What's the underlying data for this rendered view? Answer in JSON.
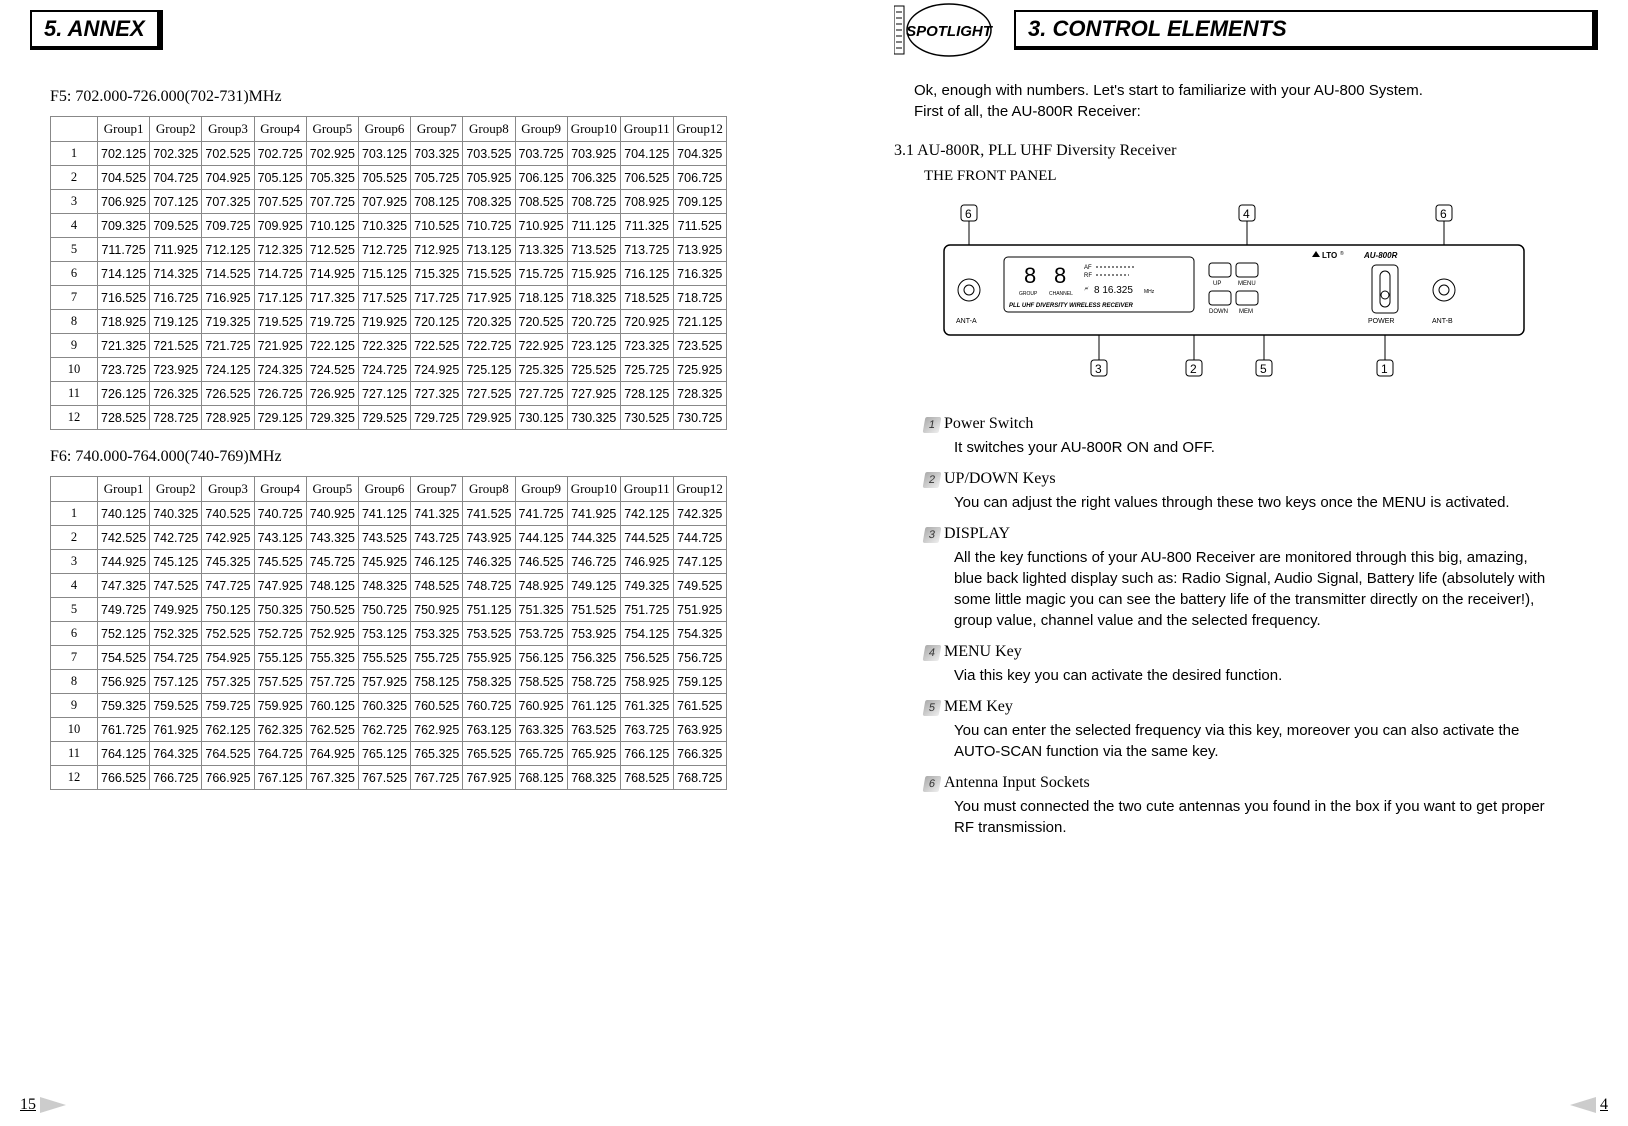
{
  "left": {
    "header": "5. ANNEX",
    "pageNum": "15",
    "table1": {
      "title": "F5: 702.000-726.000(702-731)MHz",
      "columns": [
        "Group1",
        "Group2",
        "Group3",
        "Group4",
        "Group5",
        "Group6",
        "Group7",
        "Group8",
        "Group9",
        "Group10",
        "Group11",
        "Group12"
      ],
      "rows": [
        [
          "702.125",
          "702.325",
          "702.525",
          "702.725",
          "702.925",
          "703.125",
          "703.325",
          "703.525",
          "703.725",
          "703.925",
          "704.125",
          "704.325"
        ],
        [
          "704.525",
          "704.725",
          "704.925",
          "705.125",
          "705.325",
          "705.525",
          "705.725",
          "705.925",
          "706.125",
          "706.325",
          "706.525",
          "706.725"
        ],
        [
          "706.925",
          "707.125",
          "707.325",
          "707.525",
          "707.725",
          "707.925",
          "708.125",
          "708.325",
          "708.525",
          "708.725",
          "708.925",
          "709.125"
        ],
        [
          "709.325",
          "709.525",
          "709.725",
          "709.925",
          "710.125",
          "710.325",
          "710.525",
          "710.725",
          "710.925",
          "711.125",
          "711.325",
          "711.525"
        ],
        [
          "711.725",
          "711.925",
          "712.125",
          "712.325",
          "712.525",
          "712.725",
          "712.925",
          "713.125",
          "713.325",
          "713.525",
          "713.725",
          "713.925"
        ],
        [
          "714.125",
          "714.325",
          "714.525",
          "714.725",
          "714.925",
          "715.125",
          "715.325",
          "715.525",
          "715.725",
          "715.925",
          "716.125",
          "716.325"
        ],
        [
          "716.525",
          "716.725",
          "716.925",
          "717.125",
          "717.325",
          "717.525",
          "717.725",
          "717.925",
          "718.125",
          "718.325",
          "718.525",
          "718.725"
        ],
        [
          "718.925",
          "719.125",
          "719.325",
          "719.525",
          "719.725",
          "719.925",
          "720.125",
          "720.325",
          "720.525",
          "720.725",
          "720.925",
          "721.125"
        ],
        [
          "721.325",
          "721.525",
          "721.725",
          "721.925",
          "722.125",
          "722.325",
          "722.525",
          "722.725",
          "722.925",
          "723.125",
          "723.325",
          "723.525"
        ],
        [
          "723.725",
          "723.925",
          "724.125",
          "724.325",
          "724.525",
          "724.725",
          "724.925",
          "725.125",
          "725.325",
          "725.525",
          "725.725",
          "725.925"
        ],
        [
          "726.125",
          "726.325",
          "726.525",
          "726.725",
          "726.925",
          "727.125",
          "727.325",
          "727.525",
          "727.725",
          "727.925",
          "728.125",
          "728.325"
        ],
        [
          "728.525",
          "728.725",
          "728.925",
          "729.125",
          "729.325",
          "729.525",
          "729.725",
          "729.925",
          "730.125",
          "730.325",
          "730.525",
          "730.725"
        ]
      ]
    },
    "table2": {
      "title": "F6: 740.000-764.000(740-769)MHz",
      "columns": [
        "Group1",
        "Group2",
        "Group3",
        "Group4",
        "Group5",
        "Group6",
        "Group7",
        "Group8",
        "Group9",
        "Group10",
        "Group11",
        "Group12"
      ],
      "rows": [
        [
          "740.125",
          "740.325",
          "740.525",
          "740.725",
          "740.925",
          "741.125",
          "741.325",
          "741.525",
          "741.725",
          "741.925",
          "742.125",
          "742.325"
        ],
        [
          "742.525",
          "742.725",
          "742.925",
          "743.125",
          "743.325",
          "743.525",
          "743.725",
          "743.925",
          "744.125",
          "744.325",
          "744.525",
          "744.725"
        ],
        [
          "744.925",
          "745.125",
          "745.325",
          "745.525",
          "745.725",
          "745.925",
          "746.125",
          "746.325",
          "746.525",
          "746.725",
          "746.925",
          "747.125"
        ],
        [
          "747.325",
          "747.525",
          "747.725",
          "747.925",
          "748.125",
          "748.325",
          "748.525",
          "748.725",
          "748.925",
          "749.125",
          "749.325",
          "749.525"
        ],
        [
          "749.725",
          "749.925",
          "750.125",
          "750.325",
          "750.525",
          "750.725",
          "750.925",
          "751.125",
          "751.325",
          "751.525",
          "751.725",
          "751.925"
        ],
        [
          "752.125",
          "752.325",
          "752.525",
          "752.725",
          "752.925",
          "753.125",
          "753.325",
          "753.525",
          "753.725",
          "753.925",
          "754.125",
          "754.325"
        ],
        [
          "754.525",
          "754.725",
          "754.925",
          "755.125",
          "755.325",
          "755.525",
          "755.725",
          "755.925",
          "756.125",
          "756.325",
          "756.525",
          "756.725"
        ],
        [
          "756.925",
          "757.125",
          "757.325",
          "757.525",
          "757.725",
          "757.925",
          "758.125",
          "758.325",
          "758.525",
          "758.725",
          "758.925",
          "759.125"
        ],
        [
          "759.325",
          "759.525",
          "759.725",
          "759.925",
          "760.125",
          "760.325",
          "760.525",
          "760.725",
          "760.925",
          "761.125",
          "761.325",
          "761.525"
        ],
        [
          "761.725",
          "761.925",
          "762.125",
          "762.325",
          "762.525",
          "762.725",
          "762.925",
          "763.125",
          "763.325",
          "763.525",
          "763.725",
          "763.925"
        ],
        [
          "764.125",
          "764.325",
          "764.525",
          "764.725",
          "764.925",
          "765.125",
          "765.325",
          "765.525",
          "765.725",
          "765.925",
          "766.125",
          "766.325"
        ],
        [
          "766.525",
          "766.725",
          "766.925",
          "767.125",
          "767.325",
          "767.525",
          "767.725",
          "767.925",
          "768.125",
          "768.325",
          "768.525",
          "768.725"
        ]
      ]
    }
  },
  "right": {
    "header": "3. CONTROL ELEMENTS",
    "pageNum": "4",
    "spotlight": "SPOTLIGHT",
    "intro1": "Ok, enough with numbers. Let's start to familiarize with your AU-800 System.",
    "intro2": "First of all, the AU-800R Receiver:",
    "sub31": "3.1 AU-800R, PLL UHF Diversity Receiver",
    "frontPanel": "THE FRONT PANEL",
    "diagram": {
      "callouts": [
        "1",
        "2",
        "3",
        "4",
        "5",
        "6",
        "6"
      ],
      "labels": {
        "antA": "ANT-A",
        "antB": "ANT-B",
        "power": "POWER",
        "up": "UP",
        "down": "DOWN",
        "menu": "MENU",
        "mem": "MEM",
        "pll": "PLL UHF DIVERSITY WIRELESS RECEIVER",
        "model": "AU-800R",
        "brand": "LTO",
        "group": "GROUP",
        "channel": "CHANNEL",
        "af": "AF",
        "rf": "RF",
        "freq": "8 16.325",
        "mhz": "MHz",
        "digit": "8",
        "ant": "🗲"
      }
    },
    "items": [
      {
        "n": "1",
        "title": "Power Switch",
        "body": "It switches your AU-800R ON and OFF."
      },
      {
        "n": "2",
        "title": "UP/DOWN Keys",
        "body": "You can adjust the right values through these two keys once the MENU is activated."
      },
      {
        "n": "3",
        "title": "DISPLAY",
        "body": "All the key functions of your AU-800 Receiver are monitored through this big, amazing, blue back lighted display such as: Radio Signal, Audio Signal, Battery life (absolutely with some little magic you can see the battery life of the transmitter directly on the receiver!), group value, channel value and the selected frequency."
      },
      {
        "n": "4",
        "title": "MENU Key",
        "body": "Via this key you can activate the desired function."
      },
      {
        "n": "5",
        "title": "MEM Key",
        "body": "You can enter the selected frequency via this key, moreover you can also activate the AUTO-SCAN function via the same key."
      },
      {
        "n": "6",
        "title": "Antenna Input Sockets",
        "body": "You must connected the two cute antennas you found in the box if you want to get proper RF transmission."
      }
    ]
  }
}
